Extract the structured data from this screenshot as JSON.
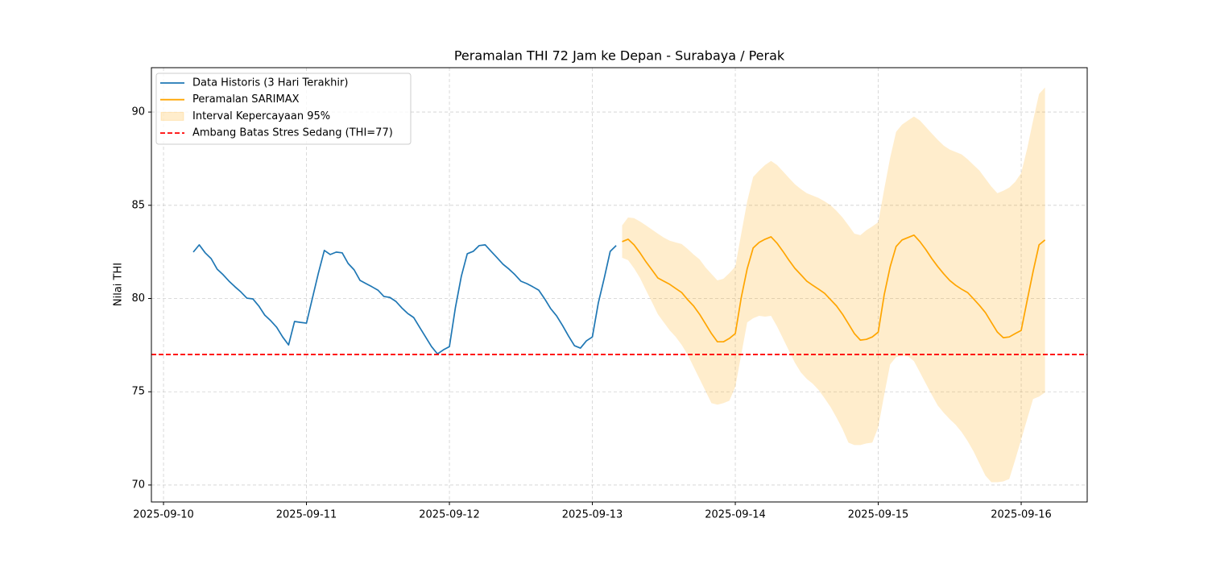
{
  "chart_data": {
    "type": "line",
    "title": "Peramalan THI 72 Jam ke Depan - Surabaya / Perak",
    "y_label": "Nilai THI",
    "xlim": [
      "2025-09-09 21:58",
      "2025-09-16 11:05"
    ],
    "xticks": [
      "2025-09-10",
      "2025-09-11",
      "2025-09-12",
      "2025-09-13",
      "2025-09-14",
      "2025-09-15",
      "2025-09-16"
    ],
    "ylim": [
      69.09,
      92.38
    ],
    "yticks": [
      70,
      75,
      80,
      85,
      90
    ],
    "grid": true,
    "legend": "upper left",
    "series": [
      {
        "name": "Data Historis (3 Hari Terakhir)",
        "color": "#1f77b4",
        "x": [
          "2025-09-10 05:00",
          "2025-09-10 06:00",
          "2025-09-10 07:00",
          "2025-09-10 08:00",
          "2025-09-10 09:00",
          "2025-09-10 10:00",
          "2025-09-10 11:00",
          "2025-09-10 12:00",
          "2025-09-10 13:00",
          "2025-09-10 14:00",
          "2025-09-10 15:00",
          "2025-09-10 16:00",
          "2025-09-10 17:00",
          "2025-09-10 18:00",
          "2025-09-10 19:00",
          "2025-09-10 20:00",
          "2025-09-10 21:00",
          "2025-09-10 22:00",
          "2025-09-10 23:00",
          "2025-09-11 00:00",
          "2025-09-11 01:00",
          "2025-09-11 02:00",
          "2025-09-11 03:00",
          "2025-09-11 04:00",
          "2025-09-11 05:00",
          "2025-09-11 06:00",
          "2025-09-11 07:00",
          "2025-09-11 08:00",
          "2025-09-11 09:00",
          "2025-09-11 10:00",
          "2025-09-11 11:00",
          "2025-09-11 12:00",
          "2025-09-11 13:00",
          "2025-09-11 14:00",
          "2025-09-11 15:00",
          "2025-09-11 16:00",
          "2025-09-11 17:00",
          "2025-09-11 18:00",
          "2025-09-11 19:00",
          "2025-09-11 20:00",
          "2025-09-11 21:00",
          "2025-09-11 22:00",
          "2025-09-11 23:00",
          "2025-09-12 00:00",
          "2025-09-12 01:00",
          "2025-09-12 02:00",
          "2025-09-12 03:00",
          "2025-09-12 04:00",
          "2025-09-12 05:00",
          "2025-09-12 06:00",
          "2025-09-12 07:00",
          "2025-09-12 08:00",
          "2025-09-12 09:00",
          "2025-09-12 10:00",
          "2025-09-12 11:00",
          "2025-09-12 12:00",
          "2025-09-12 13:00",
          "2025-09-12 14:00",
          "2025-09-12 15:00",
          "2025-09-12 16:00",
          "2025-09-12 17:00",
          "2025-09-12 18:00",
          "2025-09-12 19:00",
          "2025-09-12 20:00",
          "2025-09-12 21:00",
          "2025-09-12 22:00",
          "2025-09-12 23:00",
          "2025-09-13 00:00",
          "2025-09-13 01:00",
          "2025-09-13 02:00",
          "2025-09-13 03:00",
          "2025-09-13 04:00"
        ],
        "values": [
          82.49,
          82.88,
          82.45,
          82.14,
          81.58,
          81.28,
          80.93,
          80.63,
          80.35,
          80.02,
          79.98,
          79.6,
          79.11,
          78.81,
          78.46,
          77.94,
          77.51,
          78.77,
          78.72,
          78.68,
          80.02,
          81.36,
          82.58,
          82.36,
          82.49,
          82.45,
          81.88,
          81.54,
          80.97,
          80.8,
          80.63,
          80.45,
          80.11,
          80.06,
          79.85,
          79.5,
          79.2,
          78.98,
          78.46,
          77.94,
          77.42,
          77.03,
          77.25,
          77.42,
          79.5,
          81.19,
          82.4,
          82.53,
          82.84,
          82.88,
          82.53,
          82.19,
          81.84,
          81.58,
          81.28,
          80.93,
          80.8,
          80.63,
          80.45,
          79.98,
          79.46,
          79.07,
          78.55,
          77.99,
          77.47,
          77.34,
          77.73,
          77.94,
          79.76,
          81.1,
          82.53,
          82.84
        ]
      },
      {
        "name": "Peramalan SARIMAX",
        "color": "#ffa500",
        "x": [
          "2025-09-13 05:00",
          "2025-09-13 06:00",
          "2025-09-13 07:00",
          "2025-09-13 08:00",
          "2025-09-13 09:00",
          "2025-09-13 10:00",
          "2025-09-13 11:00",
          "2025-09-13 12:00",
          "2025-09-13 13:00",
          "2025-09-13 14:00",
          "2025-09-13 15:00",
          "2025-09-13 16:00",
          "2025-09-13 17:00",
          "2025-09-13 18:00",
          "2025-09-13 19:00",
          "2025-09-13 20:00",
          "2025-09-13 21:00",
          "2025-09-13 22:00",
          "2025-09-13 23:00",
          "2025-09-14 00:00",
          "2025-09-14 01:00",
          "2025-09-14 02:00",
          "2025-09-14 03:00",
          "2025-09-14 04:00",
          "2025-09-14 05:00",
          "2025-09-14 06:00",
          "2025-09-14 07:00",
          "2025-09-14 08:00",
          "2025-09-14 09:00",
          "2025-09-14 10:00",
          "2025-09-14 11:00",
          "2025-09-14 12:00",
          "2025-09-14 13:00",
          "2025-09-14 14:00",
          "2025-09-14 15:00",
          "2025-09-14 16:00",
          "2025-09-14 17:00",
          "2025-09-14 18:00",
          "2025-09-14 19:00",
          "2025-09-14 20:00",
          "2025-09-14 21:00",
          "2025-09-14 22:00",
          "2025-09-14 23:00",
          "2025-09-15 00:00",
          "2025-09-15 01:00",
          "2025-09-15 02:00",
          "2025-09-15 03:00",
          "2025-09-15 04:00",
          "2025-09-15 05:00",
          "2025-09-15 06:00",
          "2025-09-15 07:00",
          "2025-09-15 08:00",
          "2025-09-15 09:00",
          "2025-09-15 10:00",
          "2025-09-15 11:00",
          "2025-09-15 12:00",
          "2025-09-15 13:00",
          "2025-09-15 14:00",
          "2025-09-15 15:00",
          "2025-09-15 16:00",
          "2025-09-15 17:00",
          "2025-09-15 18:00",
          "2025-09-15 19:00",
          "2025-09-15 20:00",
          "2025-09-15 21:00",
          "2025-09-15 22:00",
          "2025-09-15 23:00",
          "2025-09-16 00:00",
          "2025-09-16 01:00",
          "2025-09-16 02:00",
          "2025-09-16 03:00",
          "2025-09-16 04:00"
        ],
        "values": [
          83.05,
          83.18,
          82.88,
          82.45,
          81.97,
          81.54,
          81.1,
          80.93,
          80.76,
          80.54,
          80.32,
          79.94,
          79.6,
          79.16,
          78.64,
          78.12,
          77.68,
          77.68,
          77.86,
          78.12,
          80.05,
          81.6,
          82.71,
          83.01,
          83.18,
          83.31,
          82.97,
          82.53,
          82.06,
          81.62,
          81.28,
          80.93,
          80.71,
          80.5,
          80.28,
          79.94,
          79.6,
          79.16,
          78.64,
          78.12,
          77.77,
          77.81,
          77.94,
          78.2,
          80.2,
          81.7,
          82.79,
          83.14,
          83.27,
          83.4,
          83.05,
          82.62,
          82.14,
          81.71,
          81.32,
          80.97,
          80.71,
          80.5,
          80.32,
          79.98,
          79.63,
          79.24,
          78.72,
          78.2,
          77.9,
          77.94,
          78.12,
          78.29,
          79.89,
          81.45,
          82.88,
          83.14
        ]
      }
    ],
    "interval": {
      "name": "Interval Kepercayaan 95%",
      "color": "#ffa500",
      "lower": [
        82.19,
        82.06,
        81.62,
        81.1,
        80.45,
        79.81,
        79.16,
        78.72,
        78.29,
        77.94,
        77.51,
        76.99,
        76.34,
        75.69,
        75.04,
        74.39,
        74.31,
        74.39,
        74.52,
        75.26,
        76.99,
        78.72,
        78.94,
        79.07,
        79.03,
        79.07,
        78.51,
        77.86,
        77.21,
        76.56,
        76.04,
        75.69,
        75.43,
        75.09,
        74.65,
        74.18,
        73.61,
        73.0,
        72.27,
        72.14,
        72.14,
        72.23,
        72.27,
        73.1,
        74.83,
        76.47,
        76.86,
        76.94,
        76.9,
        76.64,
        76.04,
        75.43,
        74.83,
        74.26,
        73.87,
        73.53,
        73.23,
        72.84,
        72.36,
        71.8,
        71.15,
        70.5,
        70.15,
        70.15,
        70.19,
        70.32,
        71.36,
        72.44,
        73.53,
        74.61,
        74.74,
        74.96
      ],
      "upper": [
        83.92,
        84.35,
        84.31,
        84.13,
        83.92,
        83.7,
        83.48,
        83.27,
        83.1,
        83.01,
        82.92,
        82.66,
        82.36,
        82.1,
        81.67,
        81.32,
        80.97,
        81.06,
        81.36,
        81.71,
        83.48,
        85.21,
        86.52,
        86.86,
        87.16,
        87.38,
        87.16,
        86.82,
        86.47,
        86.13,
        85.87,
        85.65,
        85.52,
        85.39,
        85.21,
        85.0,
        84.7,
        84.35,
        83.92,
        83.48,
        83.4,
        83.66,
        83.87,
        84.09,
        85.86,
        87.55,
        88.94,
        89.33,
        89.55,
        89.76,
        89.55,
        89.2,
        88.85,
        88.51,
        88.2,
        87.99,
        87.86,
        87.73,
        87.47,
        87.16,
        86.86,
        86.43,
        86.0,
        85.65,
        85.78,
        85.95,
        86.26,
        86.73,
        88.03,
        89.55,
        90.97,
        91.32
      ]
    },
    "hline": {
      "name": "Ambang Batas Stres Sedang (THI=77)",
      "value": 77,
      "color": "#ff0000"
    }
  }
}
